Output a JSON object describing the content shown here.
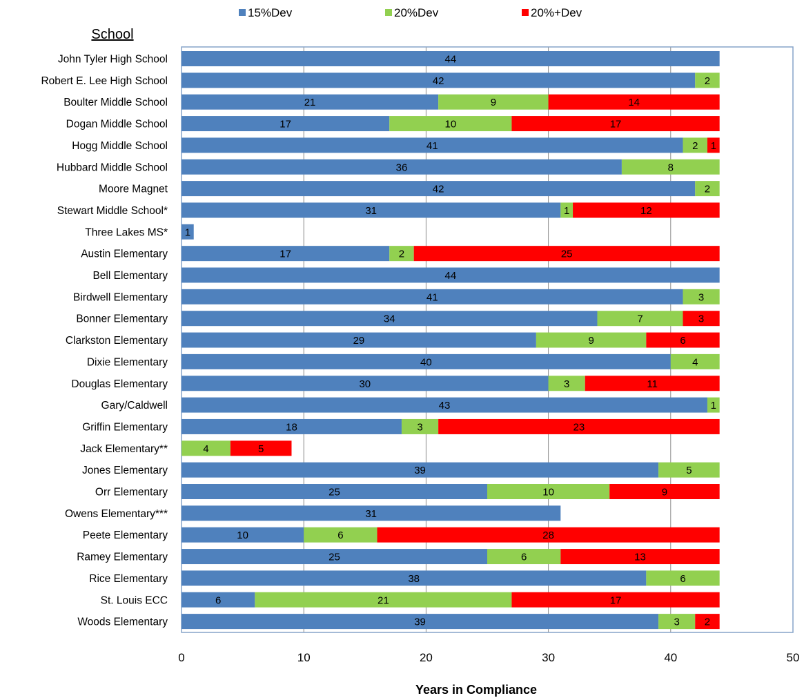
{
  "chart_data": {
    "type": "bar",
    "orientation": "horizontal",
    "stacked": true,
    "ylabel": "School",
    "xlabel": "Years in Compliance",
    "xlim": [
      0,
      50
    ],
    "xticks": [
      0,
      10,
      20,
      30,
      40,
      50
    ],
    "grid": true,
    "legend_position": "top",
    "categories": [
      "John Tyler High School",
      "Robert E. Lee High School",
      "Boulter Middle School",
      "Dogan Middle School",
      "Hogg Middle School",
      "Hubbard Middle School",
      "Moore Magnet",
      "Stewart Middle School*",
      "Three Lakes MS*",
      "Austin Elementary",
      "Bell Elementary",
      "Birdwell Elementary",
      "Bonner Elementary",
      "Clarkston Elementary",
      "Dixie Elementary",
      "Douglas Elementary",
      "Gary/Caldwell",
      "Griffin Elementary",
      "Jack Elementary**",
      "Jones Elementary",
      "Orr Elementary",
      "Owens Elementary***",
      "Peete Elementary",
      "Ramey Elementary",
      "Rice Elementary",
      "St. Louis ECC",
      "Woods Elementary"
    ],
    "series": [
      {
        "name": "15%Dev",
        "color": "#4f81bd",
        "values": [
          44,
          42,
          21,
          17,
          41,
          36,
          42,
          31,
          1,
          17,
          44,
          41,
          34,
          29,
          40,
          30,
          43,
          18,
          0,
          39,
          25,
          31,
          10,
          25,
          38,
          6,
          39
        ]
      },
      {
        "name": "20%Dev",
        "color": "#92d050",
        "values": [
          0,
          2,
          9,
          10,
          2,
          8,
          2,
          1,
          0,
          2,
          0,
          3,
          7,
          9,
          4,
          3,
          1,
          3,
          4,
          5,
          10,
          0,
          6,
          6,
          6,
          21,
          3
        ]
      },
      {
        "name": "20%+Dev",
        "color": "#ff0000",
        "values": [
          0,
          0,
          14,
          17,
          1,
          0,
          0,
          12,
          0,
          25,
          0,
          0,
          3,
          6,
          0,
          11,
          0,
          23,
          5,
          0,
          9,
          0,
          28,
          13,
          0,
          17,
          2
        ]
      }
    ]
  }
}
